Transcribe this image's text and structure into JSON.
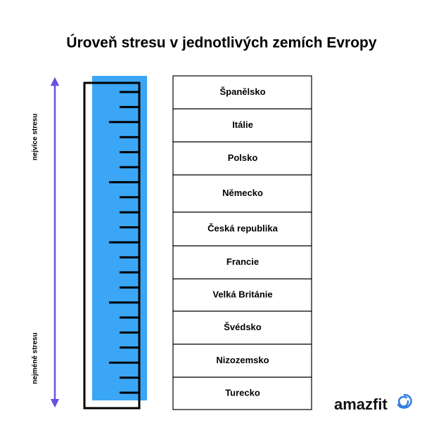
{
  "header": {
    "title": "Úroveň stresu v jednotlivých zemích Evropy"
  },
  "scale": {
    "top_label": "nejvíce stresu",
    "bottom_label": "nejméně stresu"
  },
  "countries": [
    "Španělsko",
    "Itálie",
    "Polsko",
    "Německo",
    "Česká republika",
    "Francie",
    "Velká Británie",
    "Švédsko",
    "Nizozemsko",
    "Turecko"
  ],
  "brand": "amazfit"
}
